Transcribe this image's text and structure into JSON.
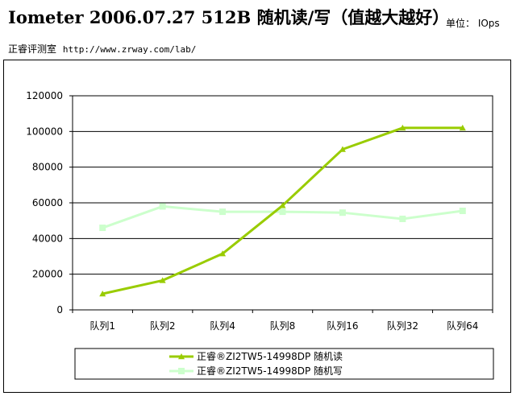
{
  "header": {
    "title": "Iometer 2006.07.27 512B 随机读/写（值越大越好）",
    "unit_label": "单位： IOps",
    "source": "正睿评测室",
    "url": "http://www.zrway.com/lab/"
  },
  "chart_data": {
    "type": "line",
    "categories": [
      "队列1",
      "队列2",
      "队列4",
      "队列8",
      "队列16",
      "队列32",
      "队列64"
    ],
    "ylim": [
      0,
      120000
    ],
    "yticks": [
      0,
      20000,
      40000,
      60000,
      80000,
      100000,
      120000
    ],
    "grid": true,
    "legend_position": "bottom",
    "series": [
      {
        "name": "正睿®ZI2TW5-14998DP 随机读",
        "color": "#99cc00",
        "marker": "triangle",
        "values": [
          9000,
          16500,
          31500,
          58500,
          90000,
          102000,
          102000
        ]
      },
      {
        "name": "正睿®ZI2TW5-14998DP 随机写",
        "color": "#ccffcc",
        "marker": "square",
        "values": [
          46000,
          58000,
          55000,
          55000,
          54500,
          51000,
          55500
        ]
      }
    ]
  }
}
